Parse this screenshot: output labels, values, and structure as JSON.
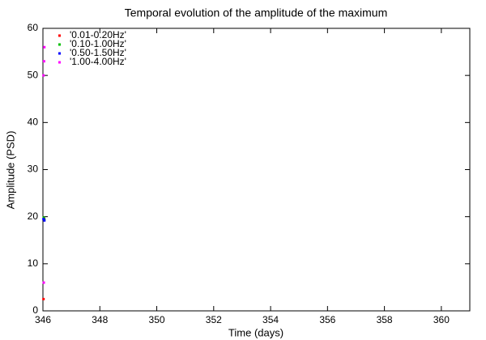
{
  "chart_data": {
    "type": "scatter",
    "title": "Temporal evolution of the amplitude of the maximum",
    "x_label": "Time (days)",
    "y_label": "Amplitude (PSD)",
    "xlim": [
      346,
      361
    ],
    "ylim": [
      0,
      60
    ],
    "xticks": [
      346,
      348,
      350,
      352,
      354,
      356,
      358,
      360
    ],
    "yticks": [
      0,
      10,
      20,
      30,
      40,
      50,
      60
    ],
    "legend": "top-left",
    "series": [
      {
        "name": "'0.01-0.20Hz'",
        "color": "#ff0000",
        "x": [
          346.02,
          346.04
        ],
        "values": [
          2.5,
          19.6
        ]
      },
      {
        "name": "'0.10-1.00Hz'",
        "color": "#00c000",
        "x": [
          346.03,
          346.05
        ],
        "values": [
          19.8,
          19.4
        ]
      },
      {
        "name": "'0.50-1.50Hz'",
        "color": "#0000ff",
        "x": [
          346.02,
          346.05
        ],
        "values": [
          19.5,
          19.2
        ]
      },
      {
        "name": "'1.00-4.00Hz'",
        "color": "#ff00ff",
        "x": [
          346.03,
          346.02,
          346.04,
          346.05
        ],
        "values": [
          6,
          50,
          53,
          56
        ]
      }
    ]
  }
}
